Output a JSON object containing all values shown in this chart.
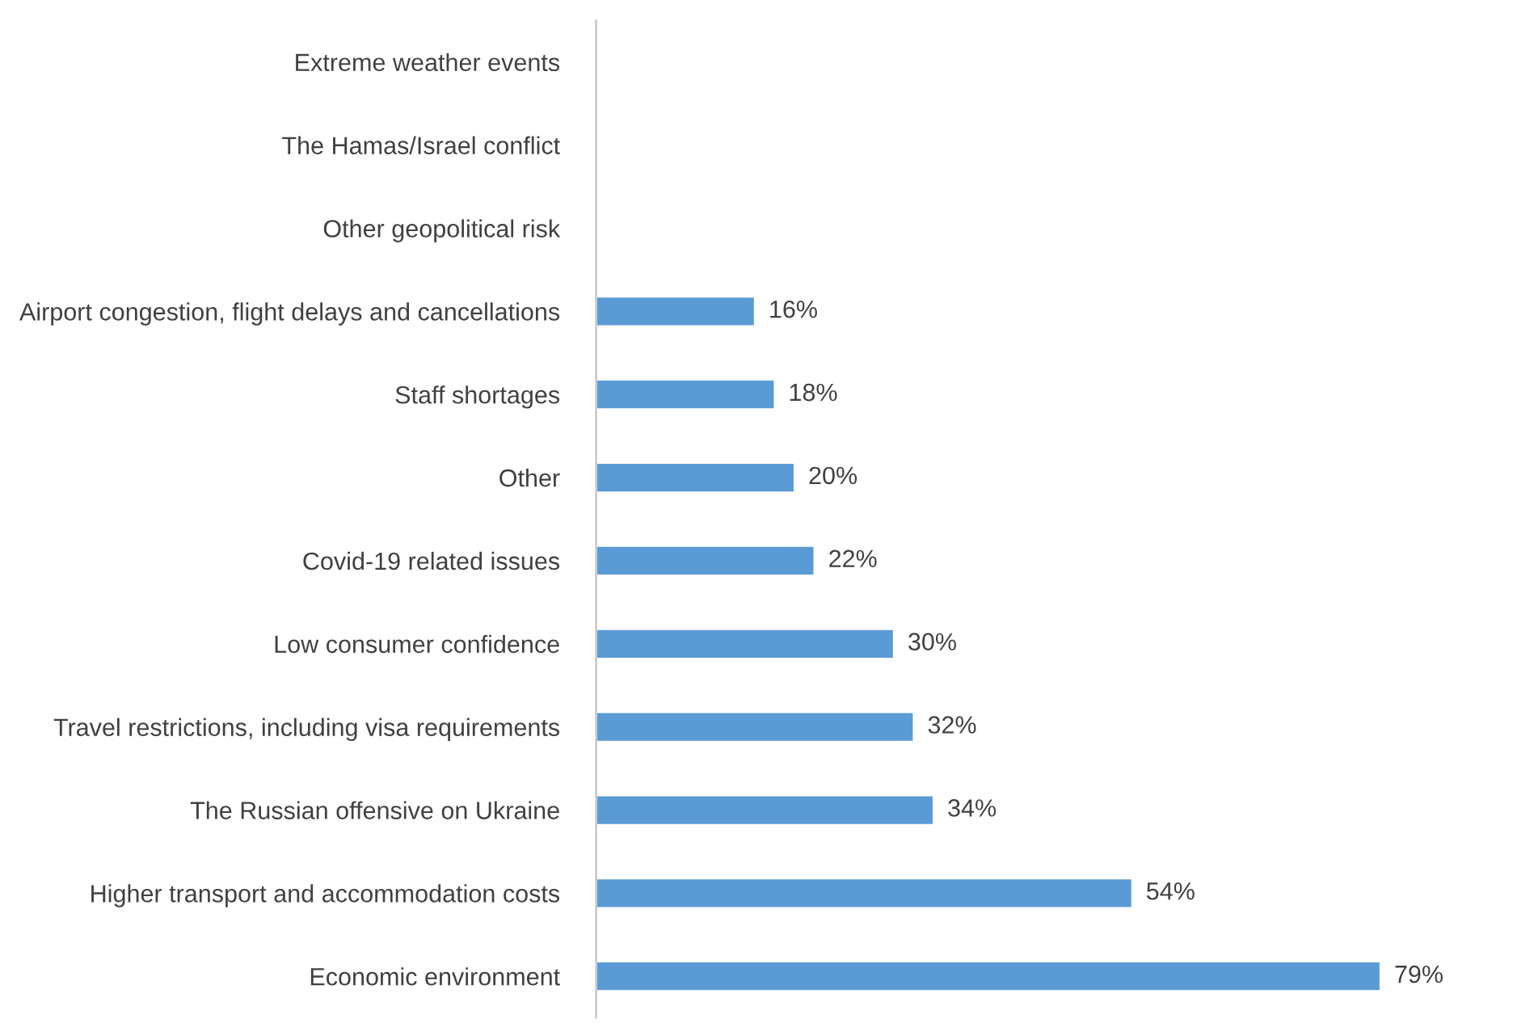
{
  "chart_data": {
    "type": "bar",
    "orientation": "horizontal",
    "categories": [
      "Extreme weather events",
      "The Hamas/Israel conflict",
      "Other geopolitical risk",
      "Airport congestion, flight delays and cancellations",
      "Staff shortages",
      "Other",
      "Covid-19 related issues",
      "Low consumer confidence",
      "Travel restrictions, including visa requirements",
      "The Russian offensive on Ukraine",
      "Higher transport and accommodation costs",
      "Economic environment"
    ],
    "values": [
      null,
      null,
      null,
      16,
      18,
      20,
      22,
      30,
      32,
      34,
      54,
      79
    ],
    "value_labels": [
      null,
      null,
      null,
      "16%",
      "18%",
      "20%",
      "22%",
      "30%",
      "32%",
      "34%",
      "54%",
      "79%"
    ],
    "color": "#5b9bd5",
    "grid": false,
    "legend": false,
    "tick_labels": "y"
  }
}
